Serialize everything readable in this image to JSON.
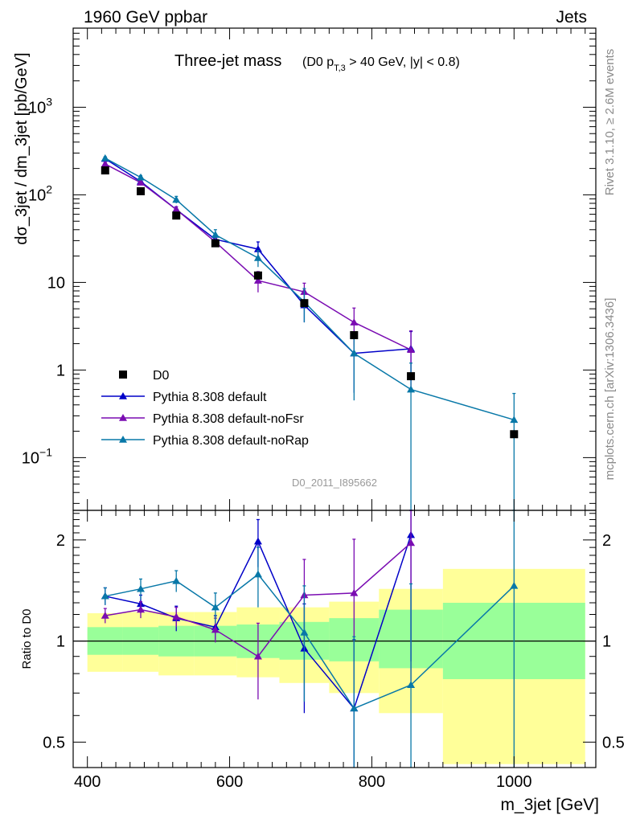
{
  "header": {
    "left": "1960 GeV ppbar",
    "right": "Jets"
  },
  "side_labels": {
    "rivet": "Rivet 3.1.10, ≥ 2.6M events",
    "mcplots": "mcplots.cern.ch [arXiv:1306.3436]"
  },
  "chart_data": [
    {
      "type": "scatter",
      "title": "Three-jet mass",
      "subtitle": "(D0 pT,3 > 40 GeV, |y| < 0.8)",
      "xlabel": "m_3jet [GeV]",
      "ylabel": "dσ_3jet / dm_3jet [pb/GeV]",
      "yscale": "log",
      "xlim": [
        380,
        1115
      ],
      "ylim": [
        0.025,
        8000
      ],
      "yticks": [
        {
          "v": 1000,
          "label": "10",
          "sup": "3"
        },
        {
          "v": 100,
          "label": "10",
          "sup": "2"
        },
        {
          "v": 10,
          "label": "10",
          "sup": ""
        },
        {
          "v": 1,
          "label": "1",
          "sup": ""
        },
        {
          "v": 0.1,
          "label": "10",
          "sup": "−1"
        }
      ],
      "watermark": "D0_2011_I895662",
      "legend_position": "middle-left",
      "data": {
        "name": "D0",
        "color": "#000000",
        "points": [
          {
            "x": 425,
            "y": 190,
            "xlo": 400,
            "xhi": 450
          },
          {
            "x": 475,
            "y": 110,
            "xlo": 450,
            "xhi": 500
          },
          {
            "x": 525,
            "y": 58,
            "xlo": 500,
            "xhi": 550
          },
          {
            "x": 580,
            "y": 28,
            "xlo": 550,
            "xhi": 610
          },
          {
            "x": 640,
            "y": 12,
            "xlo": 610,
            "xhi": 670
          },
          {
            "x": 705,
            "y": 5.8,
            "xlo": 670,
            "xhi": 740
          },
          {
            "x": 775,
            "y": 2.5,
            "xlo": 740,
            "xhi": 810
          },
          {
            "x": 855,
            "y": 0.85,
            "xlo": 810,
            "xhi": 900
          },
          {
            "x": 1000,
            "y": 0.185,
            "xlo": 900,
            "xhi": 1100
          }
        ]
      },
      "series": [
        {
          "name": "Pythia 8.308 default",
          "color": "#0000c8",
          "points": [
            {
              "x": 425,
              "y": 258,
              "err": 10
            },
            {
              "x": 475,
              "y": 142,
              "err": 7
            },
            {
              "x": 525,
              "y": 68,
              "err": 5
            },
            {
              "x": 580,
              "y": 31,
              "err": 3
            },
            {
              "x": 640,
              "y": 24,
              "err": 5
            },
            {
              "x": 705,
              "y": 5.5,
              "err": 2
            },
            {
              "x": 775,
              "y": 1.55,
              "err": 1.0
            },
            {
              "x": 855,
              "y": 1.75,
              "err": 1.0
            }
          ]
        },
        {
          "name": "Pythia 8.308 default-noFsr",
          "color": "#7a0cb2",
          "points": [
            {
              "x": 425,
              "y": 225,
              "err": 10
            },
            {
              "x": 475,
              "y": 138,
              "err": 7
            },
            {
              "x": 525,
              "y": 68,
              "err": 5
            },
            {
              "x": 580,
              "y": 29,
              "err": 3
            },
            {
              "x": 640,
              "y": 10.5,
              "err": 2.8
            },
            {
              "x": 705,
              "y": 7.8,
              "err": 2.0
            },
            {
              "x": 775,
              "y": 3.5,
              "err": 1.6
            },
            {
              "x": 855,
              "y": 1.7,
              "err": 1.1
            }
          ]
        },
        {
          "name": "Pythia 8.308 default-noRap",
          "color": "#0878a8",
          "points": [
            {
              "x": 425,
              "y": 262,
              "err": 10
            },
            {
              "x": 475,
              "y": 158,
              "err": 8
            },
            {
              "x": 525,
              "y": 88,
              "err": 8
            },
            {
              "x": 580,
              "y": 35,
              "err": 5
            },
            {
              "x": 640,
              "y": 19,
              "err": 4
            },
            {
              "x": 705,
              "y": 6.0,
              "err": 2.5
            },
            {
              "x": 775,
              "y": 1.55,
              "err": 1.1
            },
            {
              "x": 855,
              "y": 0.6,
              "err": 0.6
            },
            {
              "x": 1000,
              "y": 0.27,
              "err": 0.27
            }
          ]
        }
      ]
    },
    {
      "type": "scatter",
      "ylabel": "Ratio to D0",
      "xlabel": "m_3jet [GeV]",
      "yscale": "log",
      "xlim": [
        380,
        1115
      ],
      "ylim": [
        0.42,
        2.45
      ],
      "xticks": [
        400,
        600,
        800,
        1000
      ],
      "yticks": [
        {
          "v": 2,
          "label": "2"
        },
        {
          "v": 1,
          "label": "1"
        },
        {
          "v": 0.5,
          "label": "0.5"
        }
      ],
      "bands": [
        {
          "xlo": 400,
          "xhi": 450,
          "in": [
            0.91,
            1.1
          ],
          "out": [
            0.81,
            1.21
          ]
        },
        {
          "xlo": 450,
          "xhi": 500,
          "in": [
            0.91,
            1.1
          ],
          "out": [
            0.81,
            1.22
          ]
        },
        {
          "xlo": 500,
          "xhi": 550,
          "in": [
            0.9,
            1.11
          ],
          "out": [
            0.79,
            1.22
          ]
        },
        {
          "xlo": 550,
          "xhi": 610,
          "in": [
            0.9,
            1.11
          ],
          "out": [
            0.79,
            1.22
          ]
        },
        {
          "xlo": 610,
          "xhi": 670,
          "in": [
            0.89,
            1.12
          ],
          "out": [
            0.78,
            1.26
          ]
        },
        {
          "xlo": 670,
          "xhi": 740,
          "in": [
            0.88,
            1.14
          ],
          "out": [
            0.75,
            1.26
          ]
        },
        {
          "xlo": 740,
          "xhi": 810,
          "in": [
            0.87,
            1.17
          ],
          "out": [
            0.7,
            1.31
          ]
        },
        {
          "xlo": 810,
          "xhi": 900,
          "in": [
            0.83,
            1.24
          ],
          "out": [
            0.61,
            1.43
          ]
        },
        {
          "xlo": 900,
          "xhi": 1100,
          "in": [
            0.77,
            1.3
          ],
          "out": [
            0.43,
            1.64
          ]
        }
      ],
      "series": [
        {
          "name": "Pythia 8.308 default",
          "color": "#0000c8",
          "points": [
            {
              "x": 425,
              "y": 1.36,
              "err": 0.08
            },
            {
              "x": 475,
              "y": 1.29,
              "err": 0.08
            },
            {
              "x": 525,
              "y": 1.17,
              "err": 0.1
            },
            {
              "x": 580,
              "y": 1.1,
              "err": 0.09
            },
            {
              "x": 640,
              "y": 1.98,
              "err": 0.32
            },
            {
              "x": 705,
              "y": 0.95,
              "err": 0.34
            },
            {
              "x": 775,
              "y": 0.63,
              "err": 0.38
            },
            {
              "x": 855,
              "y": 2.07,
              "err": 1.2
            }
          ]
        },
        {
          "name": "Pythia 8.308 default-noFsr",
          "color": "#7a0cb2",
          "points": [
            {
              "x": 425,
              "y": 1.19,
              "err": 0.06
            },
            {
              "x": 475,
              "y": 1.24,
              "err": 0.07
            },
            {
              "x": 525,
              "y": 1.18,
              "err": 0.08
            },
            {
              "x": 580,
              "y": 1.08,
              "err": 0.09
            },
            {
              "x": 640,
              "y": 0.9,
              "err": 0.23
            },
            {
              "x": 705,
              "y": 1.37,
              "err": 0.38
            },
            {
              "x": 775,
              "y": 1.39,
              "err": 0.62
            },
            {
              "x": 855,
              "y": 1.96,
              "err": 1.2
            }
          ]
        },
        {
          "name": "Pythia 8.308 default-noRap",
          "color": "#0878a8",
          "points": [
            {
              "x": 425,
              "y": 1.36,
              "err": 0.08
            },
            {
              "x": 475,
              "y": 1.43,
              "err": 0.1
            },
            {
              "x": 525,
              "y": 1.51,
              "err": 0.11
            },
            {
              "x": 580,
              "y": 1.26,
              "err": 0.13
            },
            {
              "x": 640,
              "y": 1.58,
              "err": 0.32
            },
            {
              "x": 705,
              "y": 1.06,
              "err": 0.4
            },
            {
              "x": 775,
              "y": 0.63,
              "err": 0.4
            },
            {
              "x": 855,
              "y": 0.74,
              "err": 0.74
            },
            {
              "x": 1000,
              "y": 1.46,
              "err": 1.46
            }
          ]
        }
      ]
    }
  ]
}
